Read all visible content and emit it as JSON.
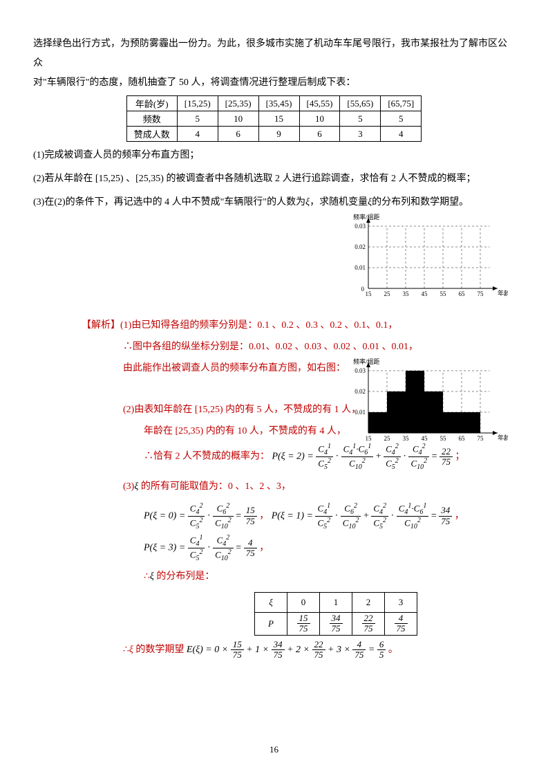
{
  "intro1": "选择绿色出行方式，为预防雾霾出一份力。为此，很多城市实施了机动车车尾号限行，我市某报社为了解市区公众",
  "intro2": "对\"车辆限行\"的态度，随机抽查了 50 人，将调查情况进行整理后制成下表：",
  "tbl": {
    "head": [
      "年龄(岁)",
      "[15,25)",
      "[25,35)",
      "[35,45)",
      "[45,55)",
      "[55,65)",
      "[65,75]"
    ],
    "r1": [
      "频数",
      "5",
      "10",
      "15",
      "10",
      "5",
      "5"
    ],
    "r2": [
      "赞成人数",
      "4",
      "6",
      "9",
      "6",
      "3",
      "4"
    ]
  },
  "q1": "(1)完成被调查人员的频率分布直方图；",
  "q2": "(2)若从年龄在 [15,25) 、[25,35) 的被调查者中各随机选取 2 人进行追踪调查，求恰有 2 人不赞成的概率；",
  "q3a": "(3)在(2)的条件下，再记选中的 4 人中不赞成\"车辆限行\"的人数为",
  "q3b": "，求随机变量",
  "q3c": "的分布列和数学期望。",
  "xi": "ξ",
  "parse": "【解析】",
  "s1a": "(1)由已知得各组的频率分别是：0.1 、0.2 、0.3 、0.2 、0.1、0.1，",
  "s1b": "∴图中各组的纵坐标分别是：0.01、0.02 、0.03 、0.02 、0.01 、0.01，",
  "s1c": "由此能作出被调查人员的频率分布直方图，如右图：",
  "s2a": "(2)由表知年龄在 [15,25) 内的有 5 人，不赞成的有 1 人，",
  "s2b": "年龄在 [25,35) 内的有 10 人，不赞成的有 4 人，",
  "s2c": "∴恰有 2 人不赞成的概率为：",
  "s3a": "的所有可能取值为：0 、1、2 、3，",
  "s3b": "的分布列是：",
  "s3c": "的数学期望",
  "dist": {
    "head": [
      "ξ",
      "0",
      "1",
      "2",
      "3"
    ],
    "p": [
      "P",
      "15",
      "34",
      "22",
      "4"
    ],
    "den": "75"
  },
  "chart1": {
    "ylbl": "频率/组距",
    "xlbl": "年龄",
    "yticks": [
      "0.01",
      "0.02",
      "0.03"
    ],
    "xticks": [
      "15",
      "25",
      "35",
      "45",
      "55",
      "65",
      "75"
    ],
    "grid_color": "#888"
  },
  "chart2": {
    "ylbl": "频率/组距",
    "xlbl": "年龄",
    "yticks": [
      "0.01",
      "0.02",
      "0.03"
    ],
    "xticks": [
      "15",
      "25",
      "35",
      "45",
      "55",
      "65",
      "75"
    ],
    "bars": [
      0.01,
      0.02,
      0.03,
      0.02,
      0.01,
      0.01
    ],
    "bar_color": "#000"
  },
  "page": "16"
}
